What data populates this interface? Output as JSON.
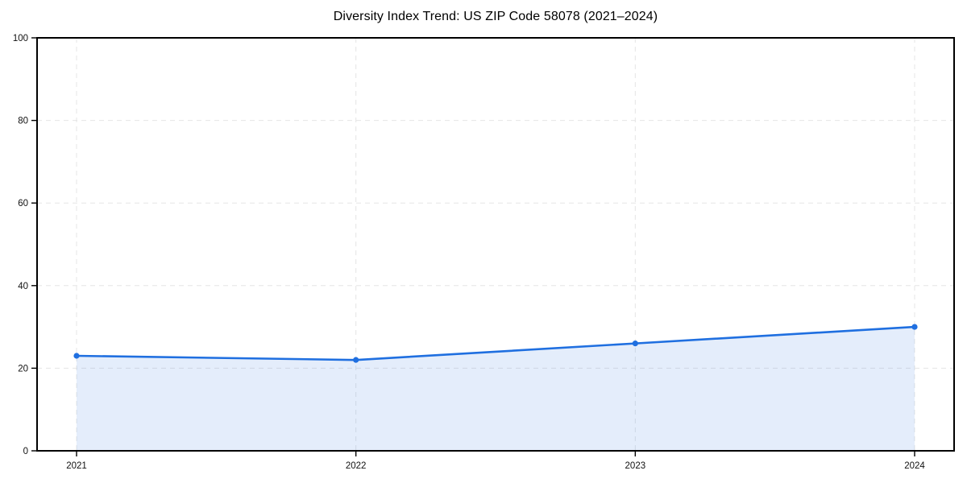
{
  "chart_data": {
    "type": "area",
    "title": "Diversity Index Trend: US ZIP Code 58078 (2021–2024)",
    "xlabel": "",
    "ylabel": "",
    "x": [
      2021,
      2022,
      2023,
      2024
    ],
    "series": [
      {
        "name": "Diversity Index",
        "values": [
          23,
          22,
          26,
          30
        ]
      }
    ],
    "ylim": [
      0,
      100
    ],
    "yticks": [
      0,
      20,
      40,
      60,
      80,
      100
    ],
    "xticks": [
      "2021",
      "2022",
      "2023",
      "2024"
    ],
    "grid": "dashed",
    "legend_position": "none",
    "line_color": "#1f6fe0",
    "marker": "circle",
    "fill_opacity": 0.12,
    "grid_color": "#e5e5e5",
    "spine_color": "#000000",
    "tick_label_color": "#111111",
    "background_color": "#ffffff"
  }
}
